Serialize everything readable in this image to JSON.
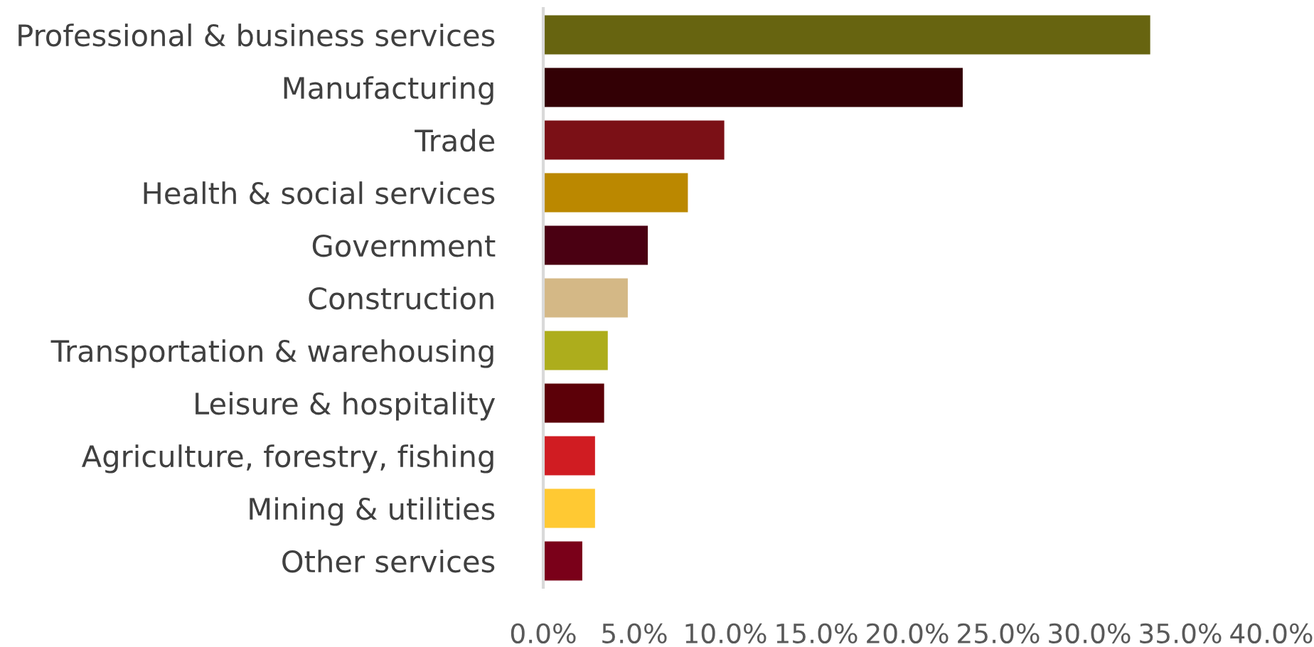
{
  "chart_data": {
    "type": "bar",
    "orientation": "horizontal",
    "categories": [
      "Professional & business services",
      "Manufacturing",
      "Trade",
      "Health & social services",
      "Government",
      "Construction",
      "Transportation & warehousing",
      "Leisure & hospitality",
      "Agriculture, forestry, fishing",
      "Mining & utilities",
      "Other services"
    ],
    "values": [
      33.4,
      23.1,
      10.0,
      8.0,
      5.8,
      4.7,
      3.6,
      3.4,
      2.9,
      2.9,
      2.2
    ],
    "colors": [
      "#676410",
      "#330005",
      "#7b1016",
      "#bb8800",
      "#4a0012",
      "#d4b886",
      "#adad1c",
      "#5c0008",
      "#d01c22",
      "#ffc933",
      "#7a0019"
    ],
    "xlim": [
      0,
      40
    ],
    "xticks": [
      {
        "value": 0,
        "label": "0.0%"
      },
      {
        "value": 5,
        "label": "5.0%"
      },
      {
        "value": 10,
        "label": "10.0%"
      },
      {
        "value": 15,
        "label": "15.0%"
      },
      {
        "value": 20,
        "label": "20.0%"
      },
      {
        "value": 25,
        "label": "25.0%"
      },
      {
        "value": 30,
        "label": "30.0%"
      },
      {
        "value": 35,
        "label": "35.0%"
      },
      {
        "value": 40,
        "label": "40.0%"
      }
    ],
    "grid": false,
    "legend": false
  }
}
